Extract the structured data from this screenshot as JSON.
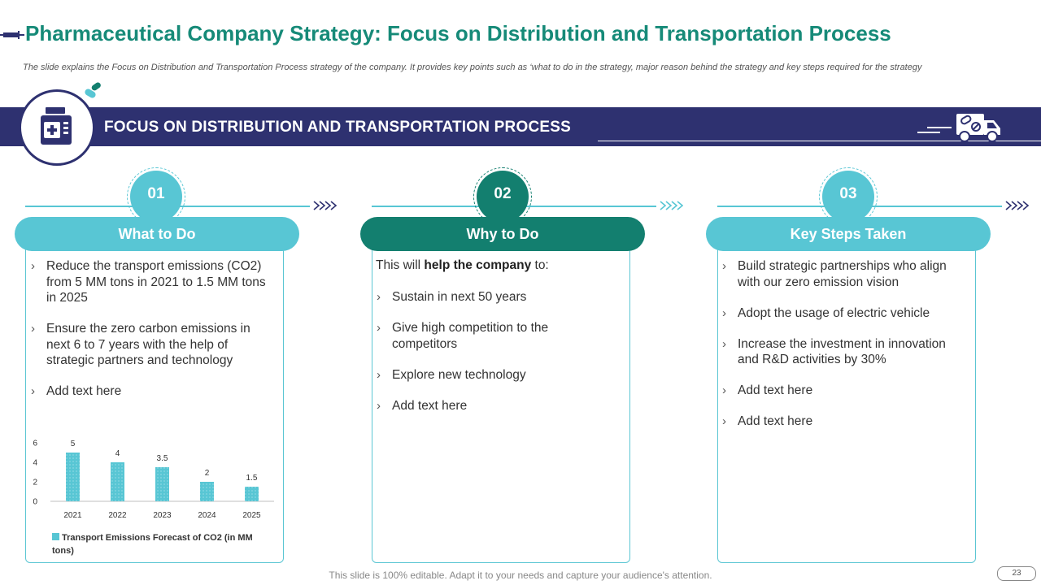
{
  "slide": {
    "title": "Pharmaceutical Company Strategy: Focus on Distribution and Transportation Process",
    "subtitle": "The slide explains the Focus on Distribution and Transportation Process strategy of the company. It provides key points such as ‘what to do in the strategy,  major reason behind the strategy and key steps required for the strategy",
    "band_title": "FOCUS ON DISTRIBUTION AND TRANSPORTATION PROCESS",
    "footer": "This slide is 100% editable. Adapt it to your needs and capture your audience's attention.",
    "page_number": "23"
  },
  "colors": {
    "navy": "#2e3170",
    "teal_light": "#58c6d4",
    "teal_dark": "#137f6f",
    "title_green": "#168a78"
  },
  "icons": [
    "syringe-icon",
    "pills-icon",
    "medicine-bottle-icon",
    "delivery-truck-icon"
  ],
  "columns": [
    {
      "number": "01",
      "heading": "What to Do",
      "items": [
        "Reduce the transport emissions (CO2) from 5 MM tons in 2021 to 1.5 MM tons in 2025",
        "Ensure the zero carbon emissions in next 6 to 7 years with the help of strategic partners and technology",
        "Add text here"
      ]
    },
    {
      "number": "02",
      "heading": "Why to Do",
      "intro_pre": "This will ",
      "intro_bold": "help the company",
      "intro_post": " to:",
      "items": [
        "Sustain in next 50 years",
        "Give high competition to the competitors",
        "Explore new technology",
        "Add text here"
      ]
    },
    {
      "number": "03",
      "heading": "Key Steps Taken",
      "items": [
        "Build strategic partnerships who align with our zero emission vision",
        "Adopt the usage of electric vehicle",
        "Increase the investment  in innovation and R&D activities by 30%",
        "Add text here",
        "Add text here"
      ]
    }
  ],
  "chart_data": {
    "type": "bar",
    "categories": [
      "2021",
      "2022",
      "2023",
      "2024",
      "2025"
    ],
    "series": [
      {
        "name": "Transport Emissions Forecast of CO2 (in MM tons)",
        "values": [
          5,
          4,
          3.5,
          2,
          1.5
        ]
      }
    ],
    "data_labels": [
      "5",
      "4",
      "3.5",
      "2",
      "1.5"
    ],
    "y_ticks": [
      "0",
      "2",
      "4",
      "6"
    ],
    "ylim": [
      0,
      6
    ],
    "grid": false,
    "legend_position": "bottom",
    "bar_color": "#58c6d4"
  }
}
